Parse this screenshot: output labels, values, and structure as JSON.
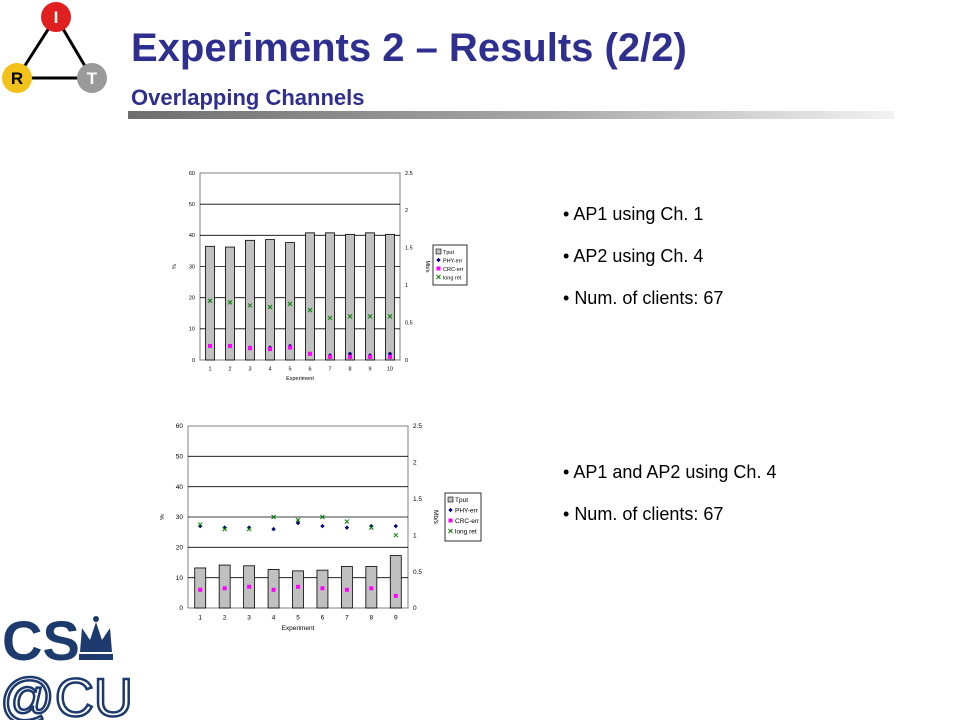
{
  "slide": {
    "title": "Experiments 2 – Results (2/2)",
    "subtitle": "Overlapping Channels",
    "title_color": "#2f2f8f"
  },
  "logo": {
    "top_letter": "I",
    "left_letter": "R",
    "right_letter": "T",
    "top_color": "#e02020",
    "left_color": "#f2c21b",
    "right_color": "#9a9a9a"
  },
  "bullets_1": [
    "AP1 using Ch. 1",
    "AP2 using Ch. 4",
    "Num. of clients: 67"
  ],
  "bullets_2": [
    "AP1 and AP2 using Ch. 4",
    "Num. of clients: 67"
  ],
  "footer_logo": {
    "line1": "CS",
    "line2": "@CU",
    "color": "#1d3a6e"
  },
  "chart_data": [
    {
      "type": "bar",
      "categories": [
        "1",
        "2",
        "3",
        "4",
        "5",
        "6",
        "7",
        "8",
        "9",
        "10"
      ],
      "xlabel": "Experiment",
      "ylabel": "%",
      "y2label": "Mb/s",
      "ylim": [
        0,
        60
      ],
      "y2lim": [
        0,
        2.5
      ],
      "yticks": [
        0,
        10,
        20,
        30,
        40,
        50,
        60
      ],
      "y2ticks": [
        "0",
        "0.5",
        "1",
        "1.5",
        "2",
        "2.5"
      ],
      "grid": true,
      "legend_position": "right",
      "series": [
        {
          "name": "Tput",
          "axis": "right",
          "marker": "bar",
          "color": "#c0c0c0",
          "values": [
            1.52,
            1.51,
            1.6,
            1.61,
            1.57,
            1.7,
            1.7,
            1.68,
            1.7,
            1.68
          ]
        },
        {
          "name": "PHY-err",
          "axis": "left",
          "marker": "diamond",
          "color": "#000080",
          "values": [
            4.5,
            4.5,
            4,
            4,
            4.5,
            2,
            1.5,
            2,
            1.5,
            2
          ]
        },
        {
          "name": "CRC-err",
          "axis": "left",
          "marker": "square",
          "color": "#ff00ff",
          "values": [
            4.5,
            4.5,
            3.8,
            3.5,
            4,
            2,
            1,
            1,
            1,
            1
          ]
        },
        {
          "name": "long ret",
          "axis": "left",
          "marker": "x",
          "color": "#008000",
          "values": [
            19,
            18.5,
            17.5,
            17,
            18,
            16,
            13.5,
            14,
            14,
            14
          ]
        }
      ]
    },
    {
      "type": "bar",
      "categories": [
        "1",
        "2",
        "3",
        "4",
        "5",
        "6",
        "7",
        "8",
        "9"
      ],
      "xlabel": "Experiment",
      "ylabel": "%",
      "y2label": "Mb/s",
      "ylim": [
        0,
        60
      ],
      "y2lim": [
        0,
        2.5
      ],
      "yticks": [
        0,
        10,
        20,
        30,
        40,
        50,
        60
      ],
      "y2ticks": [
        "0",
        "0.5",
        "1",
        "1.5",
        "2",
        "2.5"
      ],
      "grid": true,
      "legend_position": "right",
      "series": [
        {
          "name": "Tput",
          "axis": "right",
          "marker": "bar",
          "color": "#c0c0c0",
          "values": [
            0.55,
            0.59,
            0.58,
            0.53,
            0.51,
            0.52,
            0.57,
            0.57,
            0.72
          ]
        },
        {
          "name": "PHY-err",
          "axis": "left",
          "marker": "diamond",
          "color": "#000080",
          "values": [
            27,
            26.5,
            26.5,
            26,
            28,
            27,
            26.5,
            27,
            27
          ]
        },
        {
          "name": "CRC-err",
          "axis": "left",
          "marker": "square",
          "color": "#ff00ff",
          "values": [
            6,
            6.5,
            7,
            6,
            7,
            6.5,
            6,
            6.5,
            4
          ]
        },
        {
          "name": "long ret",
          "axis": "left",
          "marker": "x",
          "color": "#008000",
          "values": [
            27.5,
            26,
            26,
            30,
            29,
            30,
            28.5,
            26.5,
            24
          ]
        }
      ]
    }
  ]
}
